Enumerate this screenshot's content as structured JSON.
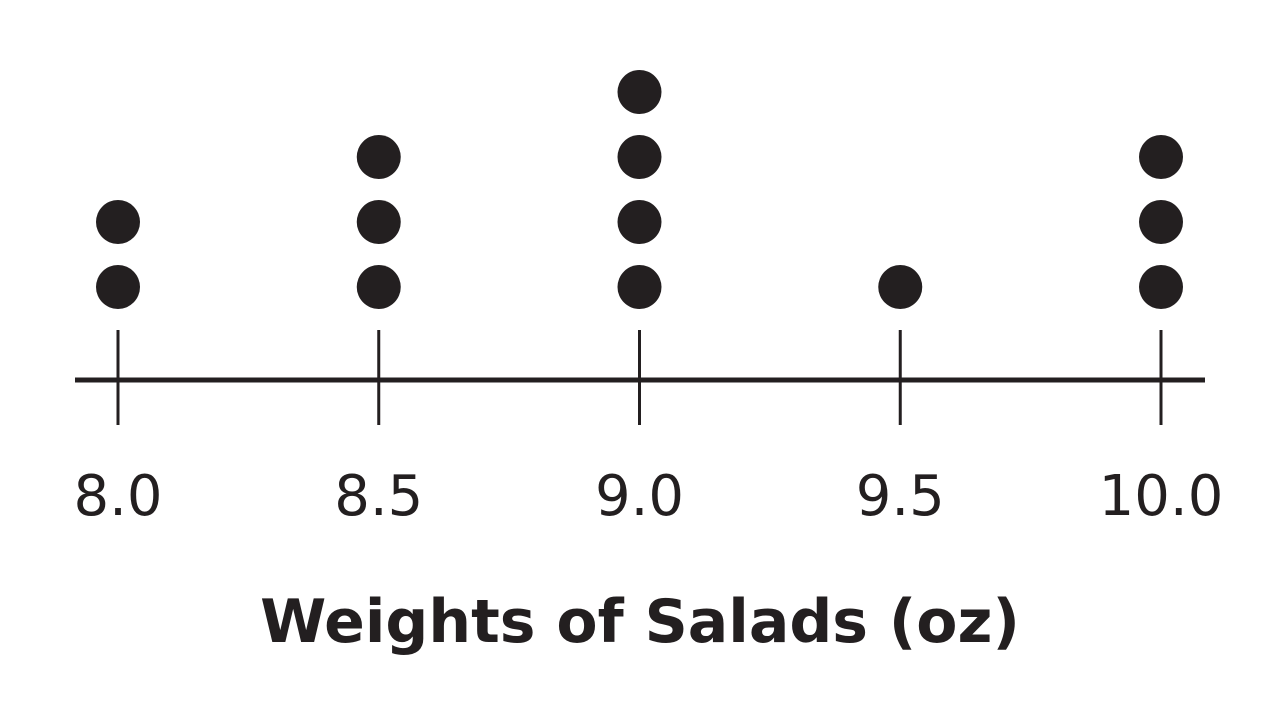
{
  "chart_data": {
    "type": "scatter",
    "subtype": "dot-plot",
    "xlabel": "Weights of Salads (oz)",
    "x_ticks": [
      8.0,
      8.5,
      9.0,
      9.5,
      10.0
    ],
    "x_tick_labels": [
      "8.0",
      "8.5",
      "9.0",
      "9.5",
      "10.0"
    ],
    "xlim": [
      8.0,
      10.0
    ],
    "points": [
      {
        "x": 8.0,
        "count": 2
      },
      {
        "x": 8.5,
        "count": 3
      },
      {
        "x": 9.0,
        "count": 4
      },
      {
        "x": 9.5,
        "count": 1
      },
      {
        "x": 10.0,
        "count": 3
      }
    ],
    "grid": false,
    "colors": {
      "dot": "#231f20",
      "axis": "#231f20"
    }
  }
}
